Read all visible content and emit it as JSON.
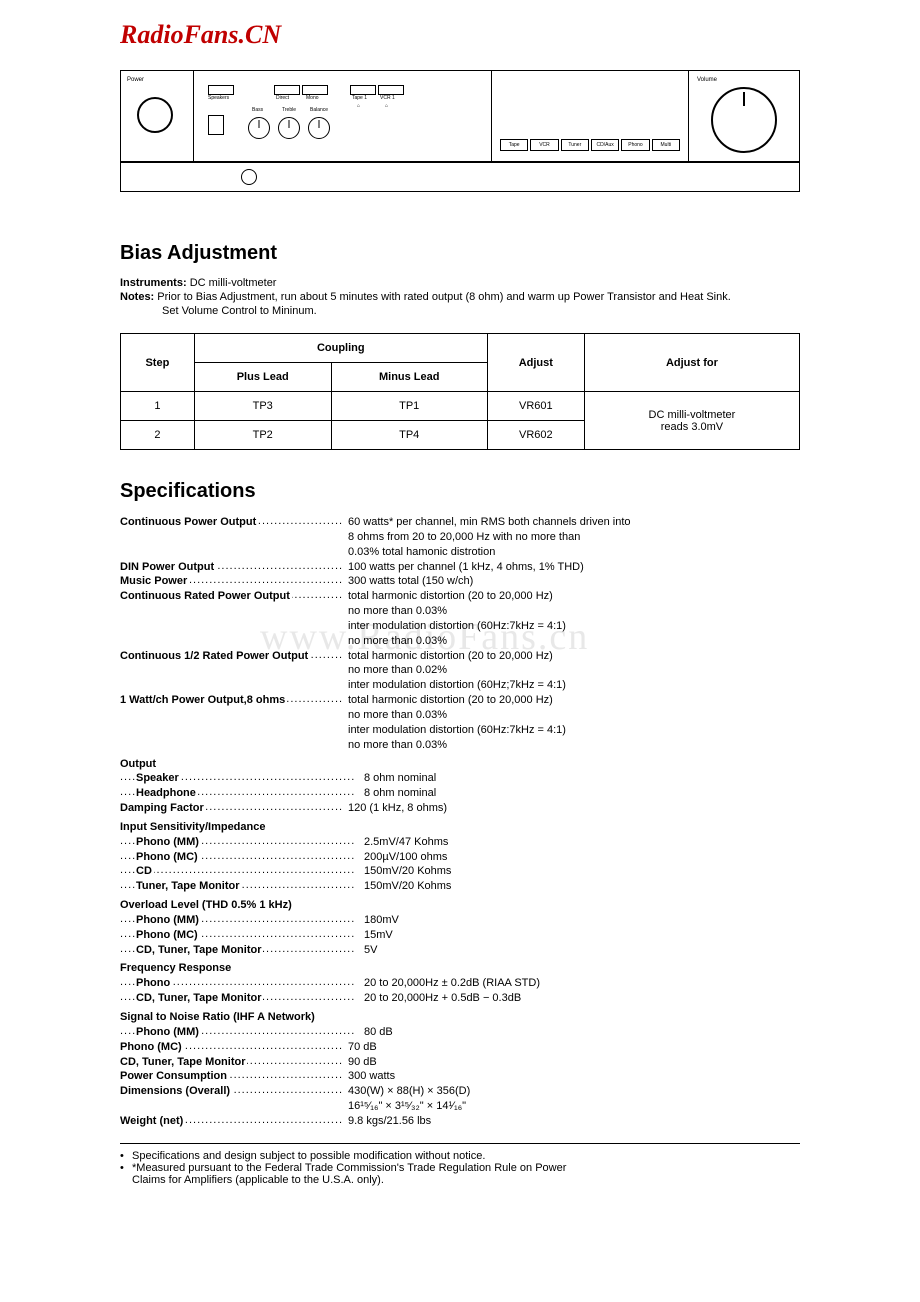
{
  "logo_text": "RadioFans.CN",
  "watermark_text": "www.RadioFans.cn",
  "panel": {
    "power_label": "Power",
    "volume_label": "Volume",
    "slot_labels_top": [
      "Speakers",
      "Direct",
      "Mono",
      "Tape 1",
      "VCR 1"
    ],
    "slot_labels_sym": [
      "⌂",
      "⌂"
    ],
    "knob_labels": [
      "Bass",
      "Treble",
      "Balance"
    ],
    "display_buttons": [
      "Tape",
      "VCR",
      "Tuner",
      "CD/Aux",
      "Phono",
      "Multi"
    ]
  },
  "section_bias_title": "Bias Adjustment",
  "bias_intro": {
    "instruments_label": "Instruments:",
    "instruments_text": "DC milli-voltmeter",
    "notes_label": "Notes:",
    "notes_line1": "Prior to Bias Adjustment, run about 5 minutes with rated output (8 ohm) and warm up Power Transistor and Heat Sink.",
    "notes_line2": "Set Volume Control to Mininum."
  },
  "bias_table": {
    "headers": {
      "step": "Step",
      "coupling": "Coupling",
      "plus": "Plus Lead",
      "minus": "Minus Lead",
      "adjust": "Adjust",
      "adjust_for": "Adjust for"
    },
    "rows": [
      {
        "step": "1",
        "plus": "TP3",
        "minus": "TP1",
        "adjust": "VR601"
      },
      {
        "step": "2",
        "plus": "TP2",
        "minus": "TP4",
        "adjust": "VR602"
      }
    ],
    "adjust_for_text_1": "DC milli-voltmeter",
    "adjust_for_text_2": "reads 3.0mV"
  },
  "section_specs_title": "Specifications",
  "specs": [
    {
      "label": "Continuous Power Output",
      "value": "60 watts* per channel, min RMS both channels driven into"
    },
    {
      "label": "",
      "value": "8 ohms from 20 to 20,000 Hz with no more than",
      "cont": true
    },
    {
      "label": "",
      "value": "0.03% total hamonic distrotion",
      "cont": true
    },
    {
      "label": "DIN Power Output",
      "value": "100 watts per channel (1 kHz, 4 ohms, 1% THD)"
    },
    {
      "label": "Music Power",
      "value": "300 watts total (150 w/ch)"
    },
    {
      "label": "Continuous Rated Power Output",
      "value": "total harmonic distortion (20 to 20,000 Hz)"
    },
    {
      "label": "",
      "value": "no more than 0.03%",
      "cont": true
    },
    {
      "label": "",
      "value": "inter modulation distortion (60Hz:7kHz = 4:1)",
      "cont": true
    },
    {
      "label": "",
      "value": "no more than 0.03%",
      "cont": true
    },
    {
      "label": "Continuous 1/2 Rated Power Output",
      "value": "total harmonic distortion (20 to 20,000 Hz)"
    },
    {
      "label": "",
      "value": "no more than 0.02%",
      "cont": true
    },
    {
      "label": "",
      "value": "inter modulation distortion (60Hz;7kHz = 4:1)",
      "cont": true
    },
    {
      "label": "1 Watt/ch Power Output,8 ohms",
      "value": "total harmonic distortion (20 to 20,000 Hz)"
    },
    {
      "label": "",
      "value": "no more than 0.03%",
      "cont": true
    },
    {
      "label": "",
      "value": "inter modulation distortion (60Hz:7kHz = 4:1)",
      "cont": true
    },
    {
      "label": "",
      "value": "no more than 0.03%",
      "cont": true
    },
    {
      "heading": "Output"
    },
    {
      "label": "Speaker",
      "indent": 1,
      "value": "8 ohm nominal"
    },
    {
      "label": "Headphone",
      "indent": 1,
      "value": "8 ohm nominal"
    },
    {
      "label": "Damping Factor",
      "value": "120 (1 kHz, 8 ohms)"
    },
    {
      "heading": "Input Sensitivity/Impedance"
    },
    {
      "label": "Phono (MM)",
      "indent": 1,
      "value": "2.5mV/47 Kohms"
    },
    {
      "label": "Phono (MC)",
      "indent": 1,
      "value": "200µV/100 ohms"
    },
    {
      "label": "CD",
      "indent": 1,
      "value": "150mV/20 Kohms"
    },
    {
      "label": "Tuner, Tape Monitor",
      "indent": 1,
      "value": "150mV/20 Kohms"
    },
    {
      "heading": "Overload Level (THD 0.5% 1 kHz)"
    },
    {
      "label": "Phono (MM)",
      "indent": 1,
      "value": "180mV"
    },
    {
      "label": "Phono (MC)",
      "indent": 1,
      "value": "15mV"
    },
    {
      "label": "CD, Tuner, Tape Monitor",
      "indent": 1,
      "value": "5V"
    },
    {
      "heading": "Frequency Response"
    },
    {
      "label": "Phono",
      "indent": 1,
      "value": "20 to 20,000Hz ± 0.2dB (RIAA STD)"
    },
    {
      "label": "CD, Tuner, Tape Monitor",
      "indent": 1,
      "value": "20 to 20,000Hz + 0.5dB − 0.3dB"
    },
    {
      "heading": "Signal to Noise Ratio (IHF A Network)"
    },
    {
      "label": "Phono (MM)",
      "indent": 1,
      "value": "80 dB"
    },
    {
      "label": "Phono (MC)",
      "value": "70 dB"
    },
    {
      "label": "CD, Tuner, Tape Monitor",
      "value": "90 dB"
    },
    {
      "label": "Power Consumption",
      "value": "300 watts"
    },
    {
      "label": "Dimensions (Overall)",
      "value": "430(W) × 88(H) × 356(D)"
    },
    {
      "label": "",
      "value": "16¹⁵⁄₁₆\" × 3¹⁵⁄₃₂\" × 14¹⁄₁₆\"",
      "cont": true
    },
    {
      "label": "Weight (net)",
      "value": "9.8 kgs/21.56 lbs"
    }
  ],
  "footnotes": [
    "Specifications and design subject to possible modification without notice.",
    "*Measured pursuant to the Federal Trade Commission's Trade Regulation Rule on Power",
    "Claims for Amplifiers (applicable to the U.S.A. only)."
  ]
}
